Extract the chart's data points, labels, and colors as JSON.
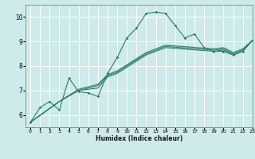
{
  "title": "",
  "xlabel": "Humidex (Indice chaleur)",
  "xlim": [
    -0.5,
    23
  ],
  "ylim": [
    5.5,
    10.5
  ],
  "yticks": [
    6,
    7,
    8,
    9,
    10
  ],
  "xticks": [
    0,
    1,
    2,
    3,
    4,
    5,
    6,
    7,
    8,
    9,
    10,
    11,
    12,
    13,
    14,
    15,
    16,
    17,
    18,
    19,
    20,
    21,
    22,
    23
  ],
  "background_color": "#ceeaea",
  "grid_color": "#ffffff",
  "line_color": "#2d7d6f",
  "lines": [
    {
      "x": [
        0,
        1,
        2,
        3,
        4,
        5,
        6,
        7,
        8,
        9,
        10,
        11,
        12,
        13,
        14,
        15,
        16,
        17,
        18,
        19,
        20,
        21,
        22,
        23
      ],
      "y": [
        5.7,
        6.3,
        6.55,
        6.2,
        7.5,
        6.95,
        6.9,
        6.75,
        7.7,
        8.35,
        9.15,
        9.55,
        10.15,
        10.2,
        10.15,
        9.65,
        9.15,
        9.3,
        8.75,
        8.6,
        8.6,
        8.45,
        8.6,
        9.05
      ],
      "marker": true
    },
    {
      "x": [
        0,
        3,
        5,
        6,
        7,
        8,
        9,
        10,
        11,
        12,
        13,
        14,
        19,
        20,
        21,
        22,
        23
      ],
      "y": [
        5.7,
        6.55,
        7.0,
        7.05,
        7.1,
        7.55,
        7.7,
        7.95,
        8.2,
        8.45,
        8.6,
        8.75,
        8.6,
        8.65,
        8.45,
        8.6,
        9.05
      ],
      "marker": false
    },
    {
      "x": [
        0,
        3,
        5,
        6,
        7,
        8,
        9,
        10,
        11,
        12,
        13,
        14,
        19,
        20,
        21,
        22,
        23
      ],
      "y": [
        5.7,
        6.55,
        7.0,
        7.1,
        7.2,
        7.6,
        7.75,
        8.0,
        8.25,
        8.5,
        8.65,
        8.8,
        8.65,
        8.7,
        8.5,
        8.65,
        9.05
      ],
      "marker": false
    },
    {
      "x": [
        0,
        3,
        5,
        6,
        7,
        8,
        9,
        10,
        11,
        12,
        13,
        14,
        19,
        20,
        21,
        22,
        23
      ],
      "y": [
        5.7,
        6.55,
        7.05,
        7.15,
        7.25,
        7.65,
        7.8,
        8.05,
        8.3,
        8.55,
        8.7,
        8.85,
        8.7,
        8.75,
        8.55,
        8.7,
        9.05
      ],
      "marker": false
    }
  ]
}
